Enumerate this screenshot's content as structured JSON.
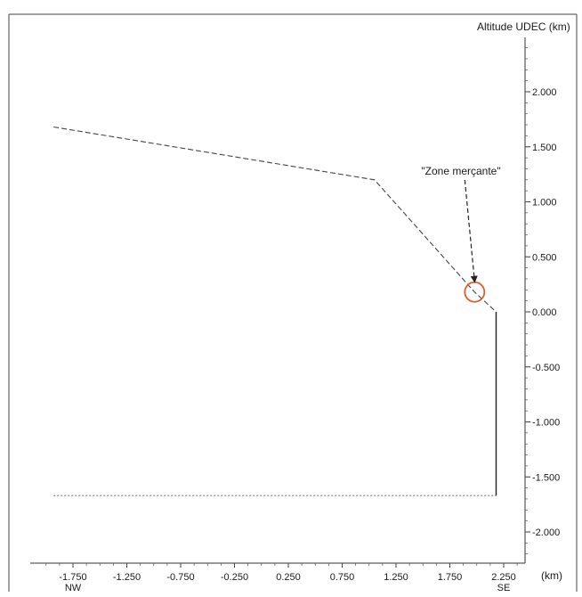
{
  "chart_data": {
    "type": "line",
    "title": "",
    "ylabel": "Altitude UDEC (km)",
    "xlabel": "(km)",
    "x_direction_labels": {
      "left": "NW",
      "right": "SE"
    },
    "xlim": [
      -2.0,
      2.45
    ],
    "ylim": [
      -2.4,
      2.45
    ],
    "x_ticks": [
      -1.75,
      -1.25,
      -0.75,
      -0.25,
      0.25,
      0.75,
      1.25,
      1.75,
      2.25
    ],
    "x_tick_labels": [
      "-1.750",
      "-1.250",
      "-0.750",
      "-0.250",
      "0.250",
      "0.750",
      "1.250",
      "1.750",
      "2.250"
    ],
    "y_ticks": [
      2.0,
      1.5,
      1.0,
      0.5,
      0.0,
      -0.5,
      -1.0,
      -1.5,
      -2.0
    ],
    "y_tick_labels": [
      "2.000",
      "1.500",
      "1.000",
      "0.500",
      "0.000",
      "-0.500",
      "-1.000",
      "-1.500",
      "-2.000"
    ],
    "grid": false,
    "series": [
      {
        "style": "dashed",
        "color": "#444444",
        "points": [
          [
            -1.93,
            1.68
          ],
          [
            1.05,
            1.2
          ],
          [
            1.98,
            0.18
          ],
          [
            2.18,
            0.0
          ]
        ]
      },
      {
        "style": "solid",
        "color": "#222222",
        "points": [
          [
            2.18,
            0.0
          ],
          [
            2.18,
            -1.67
          ]
        ]
      },
      {
        "style": "dotted",
        "color": "#777777",
        "points": [
          [
            -1.93,
            -1.67
          ],
          [
            2.18,
            -1.67
          ]
        ]
      }
    ],
    "annotations": [
      {
        "text": "\"Zone merçante\"",
        "target": [
          1.98,
          0.18
        ],
        "marker": "circle",
        "marker_color": "#e05a2a"
      }
    ]
  }
}
